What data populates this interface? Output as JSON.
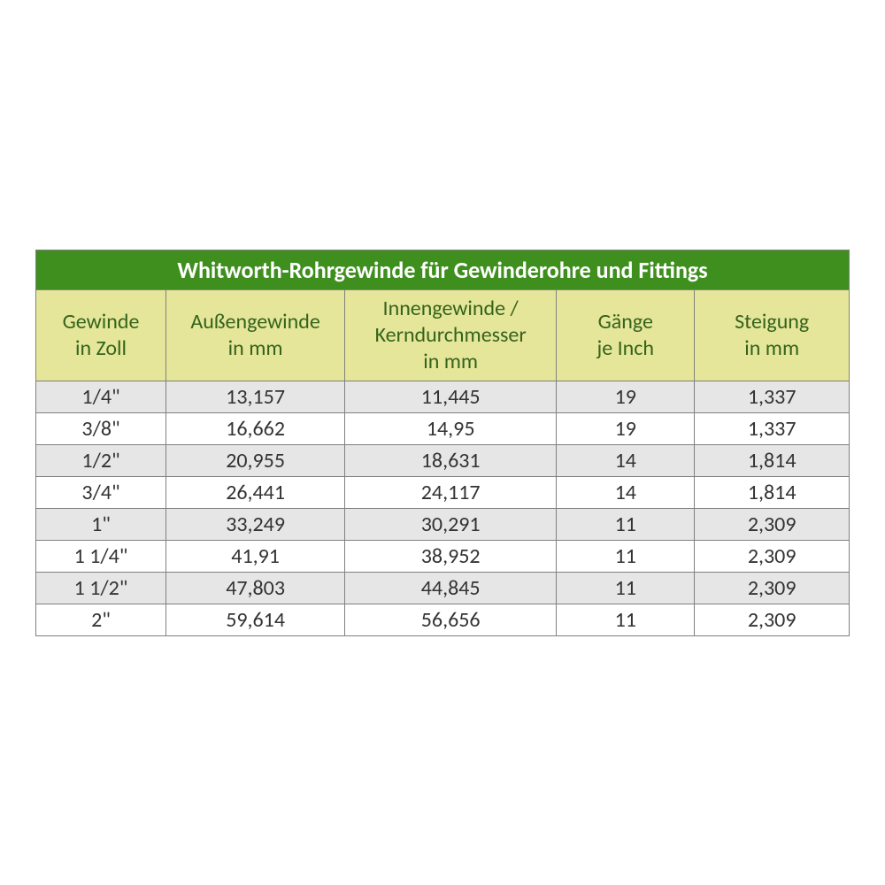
{
  "table": {
    "type": "table",
    "title": "Whitworth-Rohrgewinde für Gewinderohre und Fittings",
    "colors": {
      "title_bg": "#3f8f1f",
      "title_text": "#ffffff",
      "header_bg": "#e6e69a",
      "header_text": "#34641c",
      "row_odd_bg": "#e6e6e6",
      "row_even_bg": "#ffffff",
      "border": "#808080",
      "cell_text": "#333333"
    },
    "fontsize": {
      "title": 26,
      "header": 24,
      "cell": 24
    },
    "column_widths_pct": [
      16,
      22,
      26,
      17,
      19
    ],
    "columns": [
      {
        "line1": "Gewinde",
        "line2": "in Zoll"
      },
      {
        "line1": "Außengewinde",
        "line2": "in mm"
      },
      {
        "line1": "Innengewinde /",
        "line2": "Kerndurchmesser",
        "line3": "in mm"
      },
      {
        "line1": "Gänge",
        "line2": "je Inch"
      },
      {
        "line1": "Steigung",
        "line2": "in mm"
      }
    ],
    "rows": [
      [
        "1/4\"",
        "13,157",
        "11,445",
        "19",
        "1,337"
      ],
      [
        "3/8\"",
        "16,662",
        "14,95",
        "19",
        "1,337"
      ],
      [
        "1/2\"",
        "20,955",
        "18,631",
        "14",
        "1,814"
      ],
      [
        "3/4\"",
        "26,441",
        "24,117",
        "14",
        "1,814"
      ],
      [
        "1\"",
        "33,249",
        "30,291",
        "11",
        "2,309"
      ],
      [
        "1 1/4\"",
        "41,91",
        "38,952",
        "11",
        "2,309"
      ],
      [
        "1 1/2\"",
        "47,803",
        "44,845",
        "11",
        "2,309"
      ],
      [
        "2\"",
        "59,614",
        "56,656",
        "11",
        "2,309"
      ]
    ]
  }
}
